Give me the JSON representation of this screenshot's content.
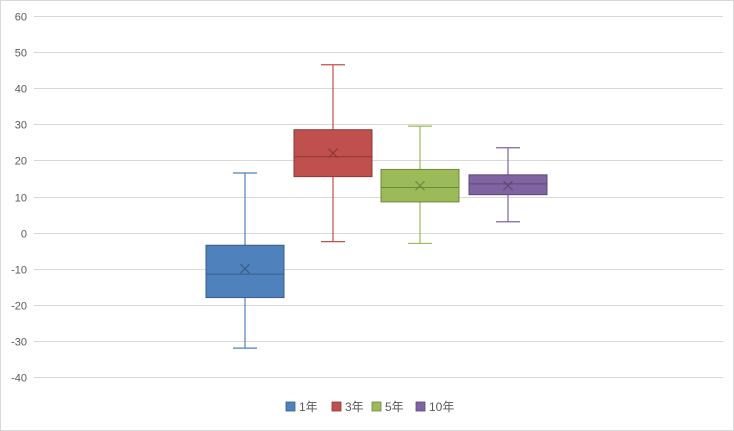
{
  "chart_data": {
    "type": "box",
    "title": "",
    "xlabel": "",
    "ylabel": "",
    "ylim": [
      -40,
      60
    ],
    "yticks": [
      60,
      50,
      40,
      30,
      20,
      10,
      0,
      -10,
      -20,
      -30,
      -40
    ],
    "grid": true,
    "legend_placement": "bottom",
    "series": [
      {
        "name": "1年",
        "color": "#4f81bd",
        "min": -32,
        "q1": -18,
        "median": -11.5,
        "mean": -10,
        "q3": -3.5,
        "max": 16.5
      },
      {
        "name": "3年",
        "color": "#c0504d",
        "min": -2.5,
        "q1": 15.5,
        "median": 21,
        "mean": 22,
        "q3": 28.5,
        "max": 46.5
      },
      {
        "name": "5年",
        "color": "#9bbb59",
        "min": -3,
        "q1": 8.5,
        "median": 12.5,
        "mean": 13,
        "q3": 17.5,
        "max": 29.5
      },
      {
        "name": "10年",
        "color": "#8064a2",
        "min": 3,
        "q1": 10.5,
        "median": 13.5,
        "mean": 13,
        "q3": 16,
        "max": 23.5
      }
    ]
  }
}
